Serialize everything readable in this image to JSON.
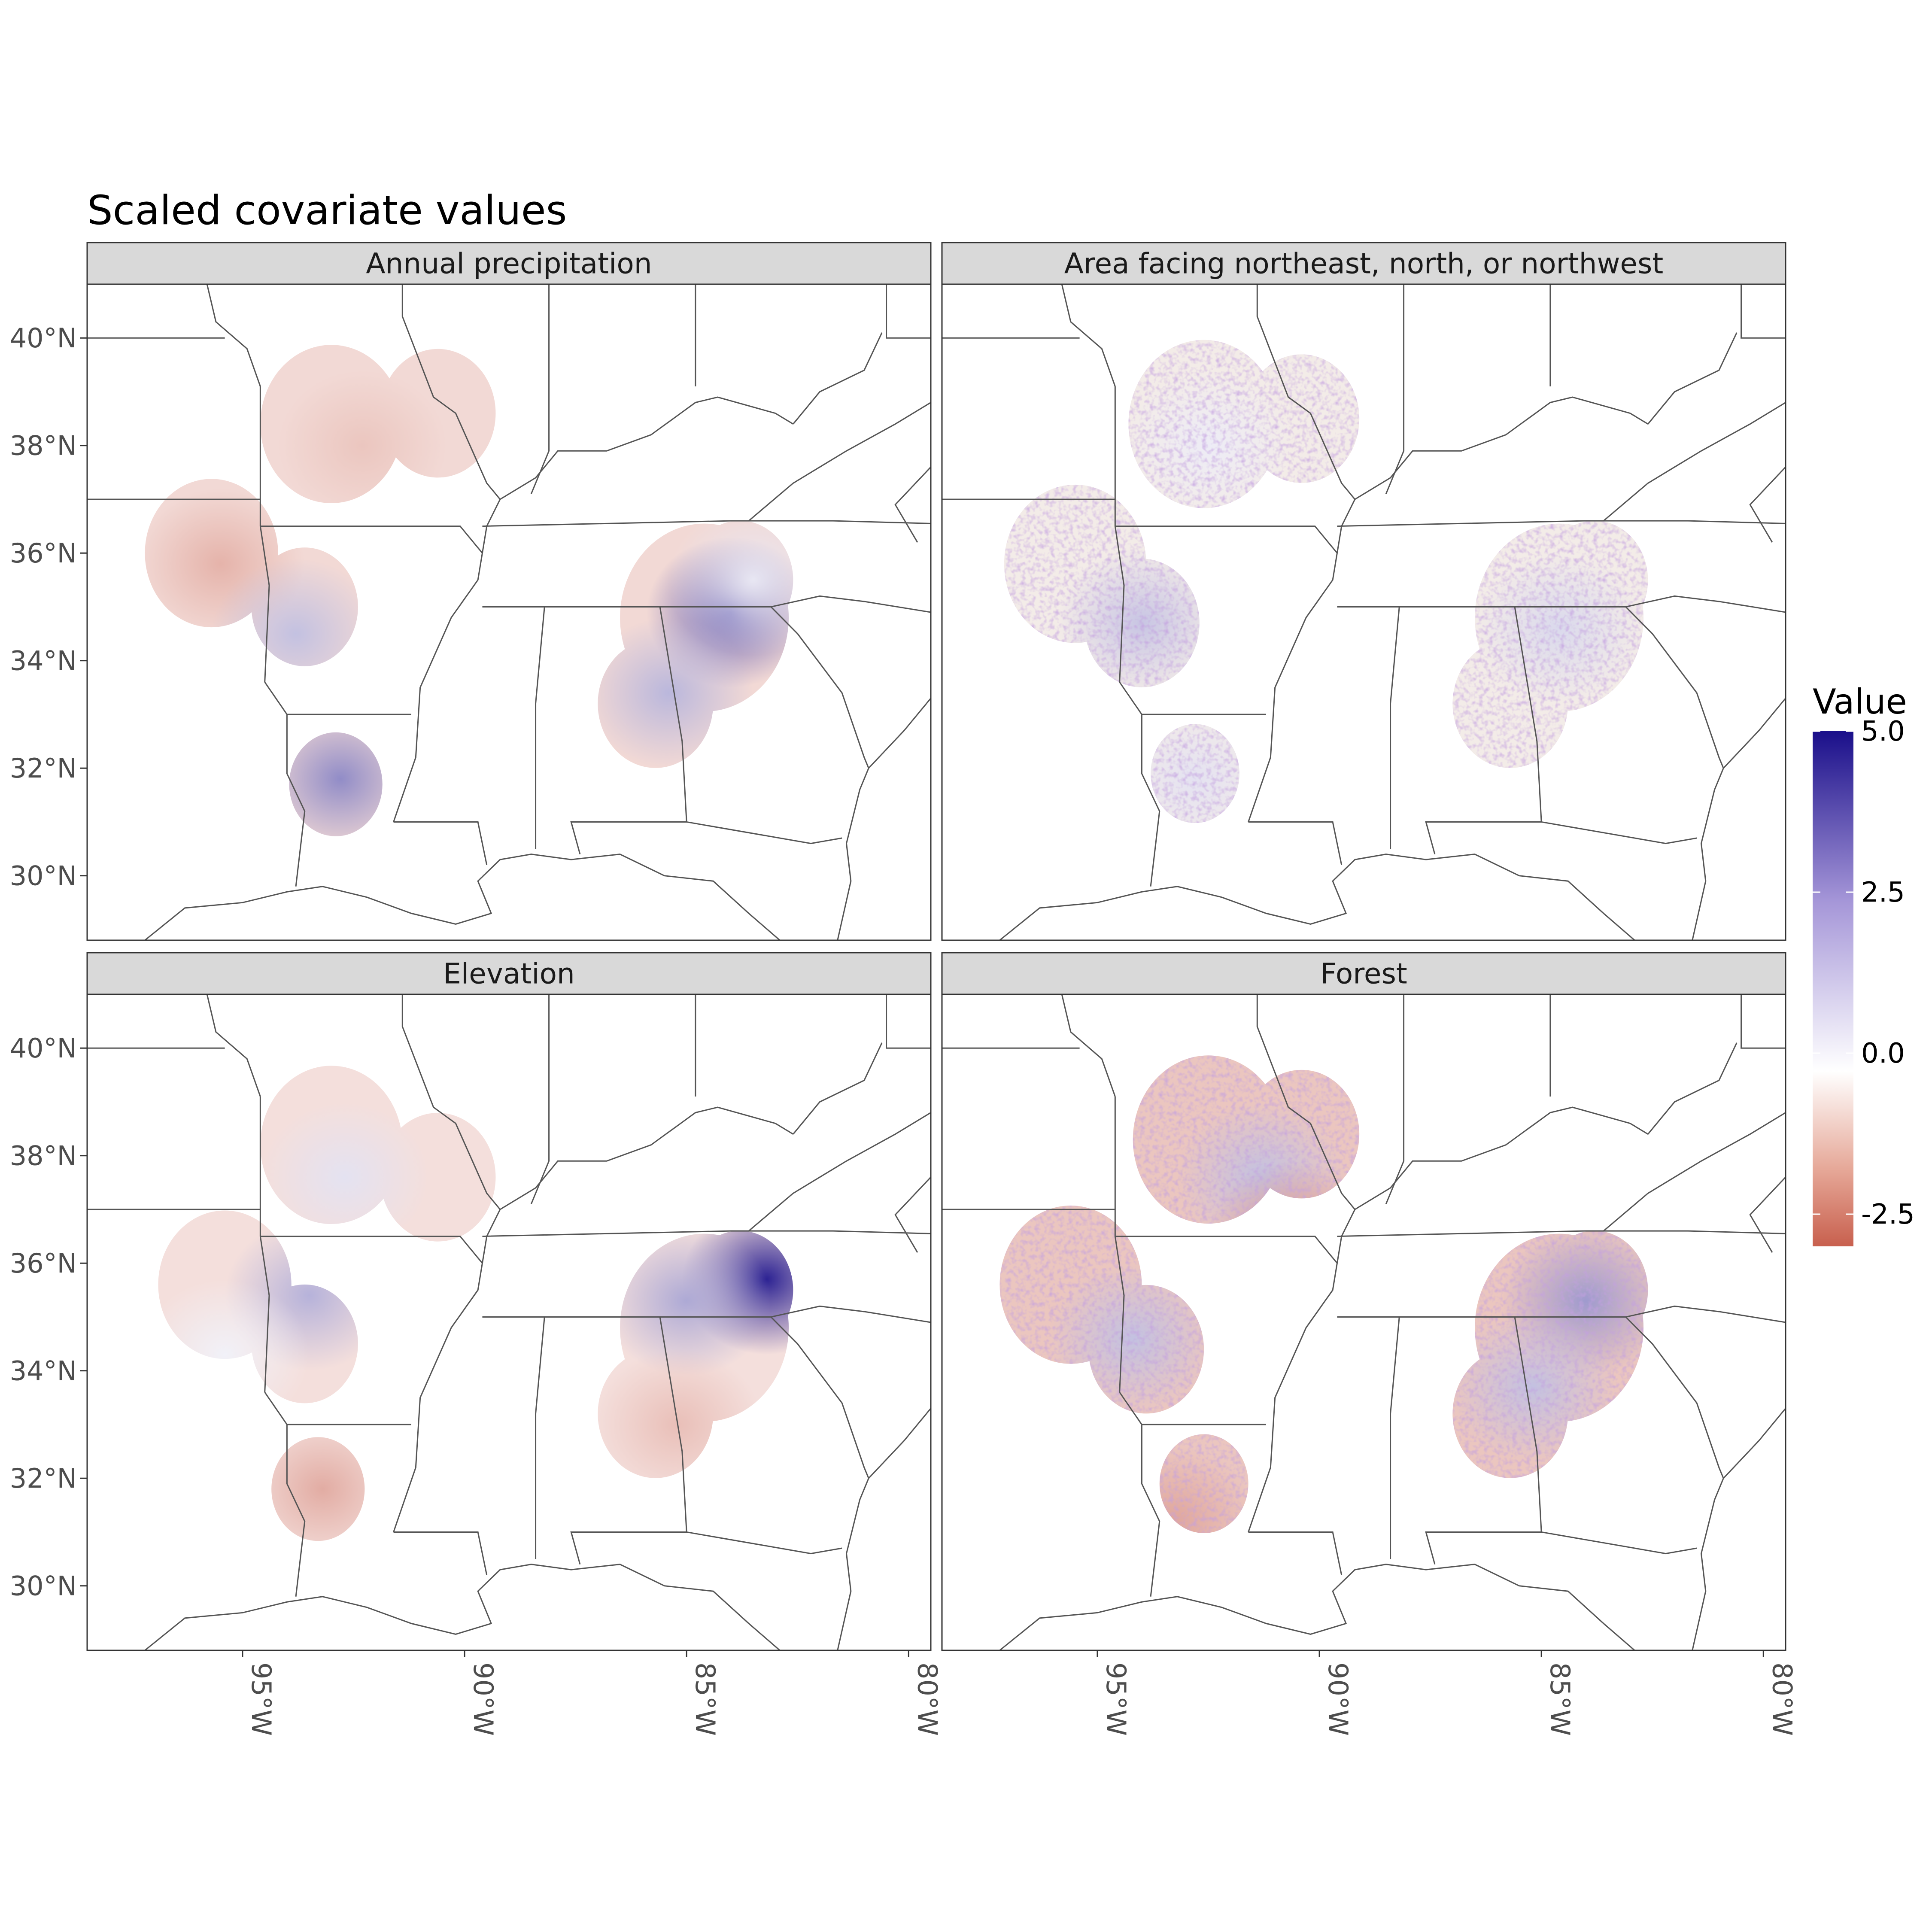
{
  "title": "Scaled covariate values",
  "panels": [
    {
      "label": "Annual precipitation"
    },
    {
      "label": "Area facing northeast, north, or northwest"
    },
    {
      "label": "Elevation"
    },
    {
      "label": "Forest"
    }
  ],
  "y_axis": {
    "ticks": [
      "40°N",
      "38°N",
      "36°N",
      "34°N",
      "32°N",
      "30°N"
    ]
  },
  "x_axis": {
    "ticks": [
      "95°W",
      "90°W",
      "85°W",
      "80°W"
    ]
  },
  "legend": {
    "title": "Value",
    "ticks": [
      "5.0",
      "2.5",
      "0.0",
      "-2.5"
    ],
    "colors": {
      "high": "#1a0f8a",
      "mid": "#ffffff",
      "low": "#c8604e"
    }
  },
  "chart_data": {
    "type": "heatmap",
    "facets": [
      "Annual precipitation",
      "Area facing northeast, north, or northwest",
      "Elevation",
      "Forest"
    ],
    "color_scale": {
      "low": -2.5,
      "mid": 0.0,
      "high": 5.0
    },
    "xlim": [
      -98.5,
      -79.5
    ],
    "ylim": [
      28.8,
      41.0
    ]
  }
}
